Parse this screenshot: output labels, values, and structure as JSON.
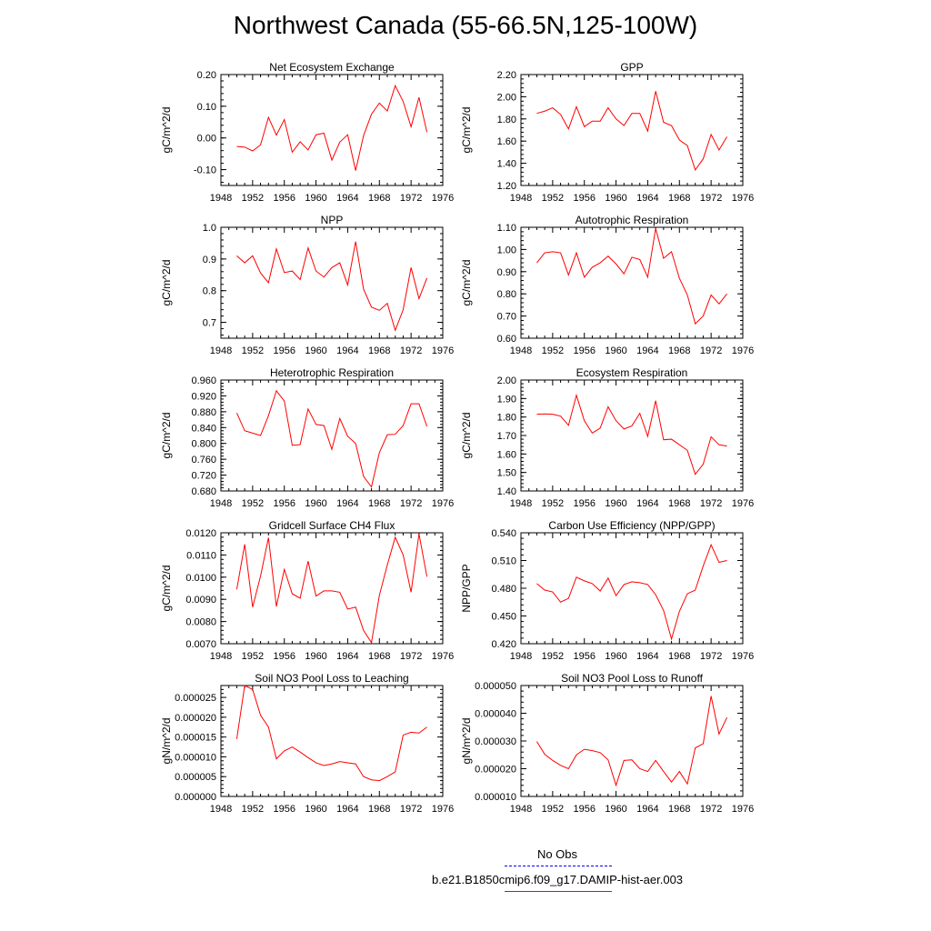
{
  "title": "Northwest Canada (55-66.5N,125-100W)",
  "legend": {
    "entries": [
      {
        "label": "No Obs",
        "color": "#0000ff",
        "style": "dashed"
      },
      {
        "label": "b.e21.B1850cmip6.f09_g17.DAMIP-hist-aer.003",
        "color": "#ff0000",
        "style": "solid"
      }
    ]
  },
  "line_color": "#ff0000",
  "chart_data": [
    {
      "type": "line",
      "title": "Net Ecosystem Exchange",
      "ylabel": "gC/m^2/d",
      "xlabel": "",
      "xlim": [
        1948,
        1976
      ],
      "xticks": [
        1948,
        1952,
        1956,
        1960,
        1964,
        1968,
        1972,
        1976
      ],
      "ylim": [
        -0.15,
        0.2
      ],
      "yticks": [
        "-0.10",
        "0.00",
        "0.10",
        "0.20"
      ],
      "x": [
        1950,
        1951,
        1952,
        1953,
        1954,
        1955,
        1956,
        1957,
        1958,
        1959,
        1960,
        1961,
        1962,
        1963,
        1964,
        1965,
        1966,
        1967,
        1968,
        1969,
        1970,
        1971,
        1972,
        1973,
        1974
      ],
      "y": [
        -0.027,
        -0.029,
        -0.041,
        -0.022,
        0.065,
        0.009,
        0.058,
        -0.045,
        -0.012,
        -0.038,
        0.01,
        0.015,
        -0.07,
        -0.013,
        0.01,
        -0.103,
        0.007,
        0.075,
        0.11,
        0.085,
        0.165,
        0.115,
        0.035,
        0.128,
        0.018
      ]
    },
    {
      "type": "line",
      "title": "GPP",
      "ylabel": "gC/m^2/d",
      "xlabel": "",
      "xlim": [
        1948,
        1976
      ],
      "xticks": [
        1948,
        1952,
        1956,
        1960,
        1964,
        1968,
        1972,
        1976
      ],
      "ylim": [
        1.2,
        2.2
      ],
      "yticks": [
        "1.20",
        "1.40",
        "1.60",
        "1.80",
        "2.00",
        "2.20"
      ],
      "x": [
        1950,
        1951,
        1952,
        1953,
        1954,
        1955,
        1956,
        1957,
        1958,
        1959,
        1960,
        1961,
        1962,
        1963,
        1964,
        1965,
        1966,
        1967,
        1968,
        1969,
        1970,
        1971,
        1972,
        1973,
        1974
      ],
      "y": [
        1.85,
        1.87,
        1.9,
        1.84,
        1.71,
        1.91,
        1.73,
        1.78,
        1.78,
        1.9,
        1.8,
        1.74,
        1.85,
        1.85,
        1.69,
        2.05,
        1.77,
        1.74,
        1.61,
        1.56,
        1.34,
        1.44,
        1.66,
        1.52,
        1.64
      ]
    },
    {
      "type": "line",
      "title": "NPP",
      "ylabel": "gC/m^2/d",
      "xlabel": "",
      "xlim": [
        1948,
        1976
      ],
      "xticks": [
        1948,
        1952,
        1956,
        1960,
        1964,
        1968,
        1972,
        1976
      ],
      "ylim": [
        0.65,
        1.0
      ],
      "yticks": [
        "0.7",
        "0.8",
        "0.9",
        "1.0"
      ],
      "x": [
        1950,
        1951,
        1952,
        1953,
        1954,
        1955,
        1956,
        1957,
        1958,
        1959,
        1960,
        1961,
        1962,
        1963,
        1964,
        1965,
        1966,
        1967,
        1968,
        1969,
        1970,
        1971,
        1972,
        1973,
        1974
      ],
      "y": [
        0.91,
        0.888,
        0.91,
        0.856,
        0.825,
        0.932,
        0.857,
        0.862,
        0.835,
        0.935,
        0.862,
        0.843,
        0.873,
        0.888,
        0.818,
        0.955,
        0.805,
        0.748,
        0.738,
        0.76,
        0.675,
        0.74,
        0.873,
        0.775,
        0.84
      ]
    },
    {
      "type": "line",
      "title": "Autotrophic Respiration",
      "ylabel": "gC/m^2/d",
      "xlabel": "",
      "xlim": [
        1948,
        1976
      ],
      "xticks": [
        1948,
        1952,
        1956,
        1960,
        1964,
        1968,
        1972,
        1976
      ],
      "ylim": [
        0.6,
        1.1
      ],
      "yticks": [
        "0.60",
        "0.70",
        "0.80",
        "0.90",
        "1.00",
        "1.10"
      ],
      "x": [
        1950,
        1951,
        1952,
        1953,
        1954,
        1955,
        1956,
        1957,
        1958,
        1959,
        1960,
        1961,
        1962,
        1963,
        1964,
        1965,
        1966,
        1967,
        1968,
        1969,
        1970,
        1971,
        1972,
        1973,
        1974
      ],
      "y": [
        0.94,
        0.985,
        0.99,
        0.985,
        0.885,
        0.985,
        0.875,
        0.92,
        0.94,
        0.97,
        0.935,
        0.89,
        0.965,
        0.955,
        0.875,
        1.095,
        0.96,
        0.99,
        0.87,
        0.795,
        0.665,
        0.7,
        0.795,
        0.755,
        0.8
      ]
    },
    {
      "type": "line",
      "title": "Heterotrophic Respiration",
      "ylabel": "gC/m^2/d",
      "xlabel": "",
      "xlim": [
        1948,
        1976
      ],
      "xticks": [
        1948,
        1952,
        1956,
        1960,
        1964,
        1968,
        1972,
        1976
      ],
      "ylim": [
        0.68,
        0.96
      ],
      "yticks": [
        "0.680",
        "0.720",
        "0.760",
        "0.800",
        "0.840",
        "0.880",
        "0.920",
        "0.960"
      ],
      "x": [
        1950,
        1951,
        1952,
        1953,
        1954,
        1955,
        1956,
        1957,
        1958,
        1959,
        1960,
        1961,
        1962,
        1963,
        1964,
        1965,
        1966,
        1967,
        1968,
        1969,
        1970,
        1971,
        1972,
        1973,
        1974
      ],
      "y": [
        0.877,
        0.832,
        0.826,
        0.82,
        0.87,
        0.933,
        0.907,
        0.795,
        0.797,
        0.887,
        0.848,
        0.845,
        0.785,
        0.863,
        0.818,
        0.8,
        0.717,
        0.69,
        0.777,
        0.822,
        0.823,
        0.845,
        0.9,
        0.9,
        0.843
      ]
    },
    {
      "type": "line",
      "title": "Ecosystem Respiration",
      "ylabel": "gC/m^2/d",
      "xlabel": "",
      "xlim": [
        1948,
        1976
      ],
      "xticks": [
        1948,
        1952,
        1956,
        1960,
        1964,
        1968,
        1972,
        1976
      ],
      "ylim": [
        1.4,
        2.0
      ],
      "yticks": [
        "1.40",
        "1.50",
        "1.60",
        "1.70",
        "1.80",
        "1.90",
        "2.00"
      ],
      "x": [
        1950,
        1951,
        1952,
        1953,
        1954,
        1955,
        1956,
        1957,
        1958,
        1959,
        1960,
        1961,
        1962,
        1963,
        1964,
        1965,
        1966,
        1967,
        1968,
        1969,
        1970,
        1971,
        1972,
        1973,
        1974
      ],
      "y": [
        1.815,
        1.817,
        1.815,
        1.805,
        1.755,
        1.918,
        1.78,
        1.713,
        1.74,
        1.855,
        1.78,
        1.735,
        1.752,
        1.82,
        1.695,
        1.888,
        1.677,
        1.68,
        1.65,
        1.62,
        1.49,
        1.545,
        1.693,
        1.65,
        1.643
      ]
    },
    {
      "type": "line",
      "title": "Gridcell Surface CH4 Flux",
      "ylabel": "gC/m^2/d",
      "xlabel": "",
      "xlim": [
        1948,
        1976
      ],
      "xticks": [
        1948,
        1952,
        1956,
        1960,
        1964,
        1968,
        1972,
        1976
      ],
      "ylim": [
        0.007,
        0.012
      ],
      "yticks": [
        "0.0070",
        "0.0080",
        "0.0090",
        "0.0100",
        "0.0110",
        "0.0120"
      ],
      "x": [
        1950,
        1951,
        1952,
        1953,
        1954,
        1955,
        1956,
        1957,
        1958,
        1959,
        1960,
        1961,
        1962,
        1963,
        1964,
        1965,
        1966,
        1967,
        1968,
        1969,
        1970,
        1971,
        1972,
        1973,
        1974
      ],
      "y": [
        0.00945,
        0.01148,
        0.00865,
        0.01005,
        0.01178,
        0.00868,
        0.01035,
        0.00925,
        0.00905,
        0.01072,
        0.00915,
        0.00938,
        0.00938,
        0.00932,
        0.00856,
        0.00865,
        0.0076,
        0.00705,
        0.00918,
        0.01055,
        0.0118,
        0.011,
        0.00932,
        0.01195,
        0.01002
      ]
    },
    {
      "type": "line",
      "title": "Carbon Use Efficiency (NPP/GPP)",
      "ylabel": "NPP/GPP",
      "xlabel": "",
      "xlim": [
        1948,
        1976
      ],
      "xticks": [
        1948,
        1952,
        1956,
        1960,
        1964,
        1968,
        1972,
        1976
      ],
      "ylim": [
        0.42,
        0.54
      ],
      "yticks": [
        "0.420",
        "0.450",
        "0.480",
        "0.510",
        "0.540"
      ],
      "x": [
        1950,
        1951,
        1952,
        1953,
        1954,
        1955,
        1956,
        1957,
        1958,
        1959,
        1960,
        1961,
        1962,
        1963,
        1964,
        1965,
        1966,
        1967,
        1968,
        1969,
        1970,
        1971,
        1972,
        1973,
        1974
      ],
      "y": [
        0.485,
        0.478,
        0.476,
        0.465,
        0.469,
        0.492,
        0.488,
        0.485,
        0.477,
        0.491,
        0.472,
        0.484,
        0.487,
        0.486,
        0.484,
        0.473,
        0.456,
        0.425,
        0.455,
        0.474,
        0.478,
        0.504,
        0.527,
        0.508,
        0.51
      ]
    },
    {
      "type": "line",
      "title": "Soil NO3 Pool Loss to Leaching",
      "ylabel": "gN/m^2/d",
      "xlabel": "",
      "xlim": [
        1948,
        1976
      ],
      "xticks": [
        1948,
        1952,
        1956,
        1960,
        1964,
        1968,
        1972,
        1976
      ],
      "ylim": [
        0.0,
        2.8e-05
      ],
      "yticks": [
        "0.000000",
        "0.000005",
        "0.000010",
        "0.000015",
        "0.000020",
        "0.000025"
      ],
      "x": [
        1950,
        1951,
        1952,
        1953,
        1954,
        1955,
        1956,
        1957,
        1958,
        1959,
        1960,
        1961,
        1962,
        1963,
        1964,
        1965,
        1966,
        1967,
        1968,
        1969,
        1970,
        1971,
        1972,
        1973,
        1974
      ],
      "y": [
        1.45e-05,
        2.8e-05,
        2.7e-05,
        2.05e-05,
        1.75e-05,
        9.5e-06,
        1.15e-05,
        1.25e-05,
        1.12e-05,
        9.8e-06,
        8.5e-06,
        7.8e-06,
        8.2e-06,
        8.8e-06,
        8.5e-06,
        8.2e-06,
        5e-06,
        4.2e-06,
        4e-06,
        5e-06,
        6.2e-06,
        1.55e-05,
        1.62e-05,
        1.6e-05,
        1.75e-05
      ]
    },
    {
      "type": "line",
      "title": "Soil NO3 Pool Loss to Runoff",
      "ylabel": "gN/m^2/d",
      "xlabel": "",
      "xlim": [
        1948,
        1976
      ],
      "xticks": [
        1948,
        1952,
        1956,
        1960,
        1964,
        1968,
        1972,
        1976
      ],
      "ylim": [
        1e-05,
        5e-05
      ],
      "yticks": [
        "0.000010",
        "0.000020",
        "0.000030",
        "0.000040",
        "0.000050"
      ],
      "x": [
        1950,
        1951,
        1952,
        1953,
        1954,
        1955,
        1956,
        1957,
        1958,
        1959,
        1960,
        1961,
        1962,
        1963,
        1964,
        1965,
        1966,
        1967,
        1968,
        1969,
        1970,
        1971,
        1972,
        1973,
        1974
      ],
      "y": [
        2.98e-05,
        2.52e-05,
        2.3e-05,
        2.12e-05,
        2e-05,
        2.5e-05,
        2.7e-05,
        2.65e-05,
        2.58e-05,
        2.32e-05,
        1.4e-05,
        2.3e-05,
        2.32e-05,
        2e-05,
        1.9e-05,
        2.3e-05,
        1.9e-05,
        1.52e-05,
        1.9e-05,
        1.45e-05,
        2.75e-05,
        2.9e-05,
        4.62e-05,
        3.25e-05,
        3.85e-05
      ]
    }
  ]
}
